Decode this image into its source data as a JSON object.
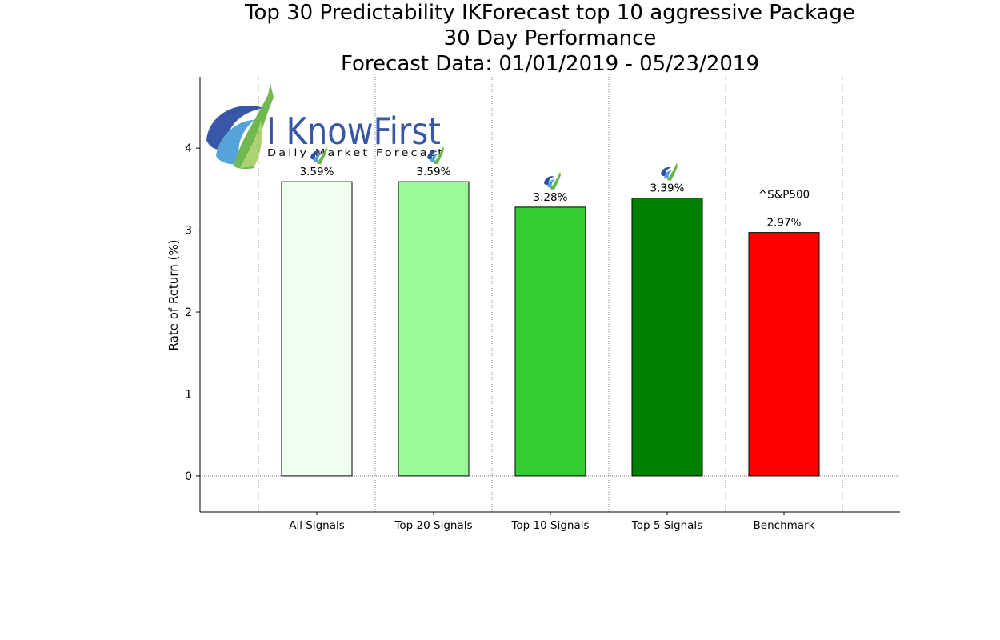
{
  "chart_data": {
    "type": "bar",
    "title_lines": [
      "Top 30 Predictability IKForecast top 10 aggressive Package",
      "30 Day Performance",
      "Forecast Data: 01/01/2019 - 05/23/2019"
    ],
    "ylabel": "Rate of Return (%)",
    "xlabel": "",
    "categories": [
      "All Signals",
      "Top 20 Signals",
      "Top 10 Signals",
      "Top 5 Signals",
      "Benchmark"
    ],
    "values": [
      3.59,
      3.59,
      3.28,
      3.39,
      2.97
    ],
    "value_labels": [
      "3.59%",
      "3.59%",
      "3.28%",
      "3.39%",
      "2.97%"
    ],
    "colors": [
      "#f0fff0",
      "#98fb98",
      "#32cd32",
      "#008000",
      "#ff0000"
    ],
    "benchmark_name": "^S&P500",
    "ylim": [
      -0.44,
      4.87
    ],
    "yticks": [
      0,
      1,
      2,
      3,
      4
    ],
    "grid": "vertical dotted",
    "legend": "none",
    "logo": {
      "brand": "I KnowFirst",
      "tagline": "Daily Market Forecast",
      "colors": [
        "#2e4fa3",
        "#6ab547"
      ]
    }
  }
}
